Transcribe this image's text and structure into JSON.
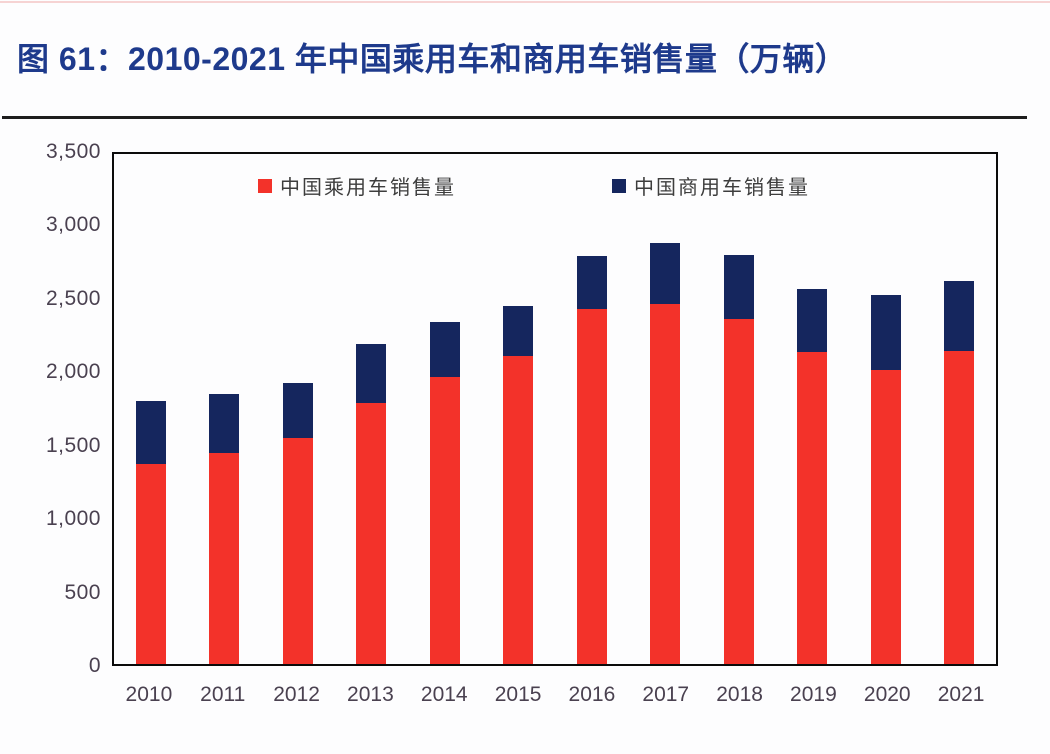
{
  "figure": {
    "title": "图 61：2010-2021 年中国乘用车和商用车销售量（万辆）"
  },
  "colors": {
    "title_blue": "#1e3a8c",
    "passenger_red": "#f3322a",
    "commercial_navy": "#15265e",
    "axis_text": "#4a4150",
    "legend_text": "#3d3d3d"
  },
  "chart_data": {
    "type": "bar",
    "stacked": true,
    "title": "2010-2021 年中国乘用车和商用车销售量（万辆）",
    "unit": "万辆",
    "categories": [
      "2010",
      "2011",
      "2012",
      "2013",
      "2014",
      "2015",
      "2016",
      "2017",
      "2018",
      "2019",
      "2020",
      "2021"
    ],
    "series": [
      {
        "name": "中国乘用车销售量",
        "color": "#f3322a",
        "values": [
          1375.8,
          1447.2,
          1549.5,
          1792.9,
          1970.1,
          2114.6,
          2437.7,
          2471.8,
          2371.0,
          2144.4,
          2017.8,
          2148.2
        ]
      },
      {
        "name": "中国商用车销售量",
        "color": "#15265e",
        "values": [
          430.4,
          403.3,
          381.1,
          405.5,
          379.1,
          345.1,
          365.1,
          416.1,
          437.1,
          432.4,
          513.3,
          479.3
        ]
      }
    ],
    "ylim": [
      0,
      3500
    ],
    "y_ticks": [
      "3,500",
      "3,000",
      "2,500",
      "2,000",
      "1,500",
      "1,000",
      "500",
      "0"
    ],
    "grid": false,
    "legend_position": "top-inside"
  }
}
